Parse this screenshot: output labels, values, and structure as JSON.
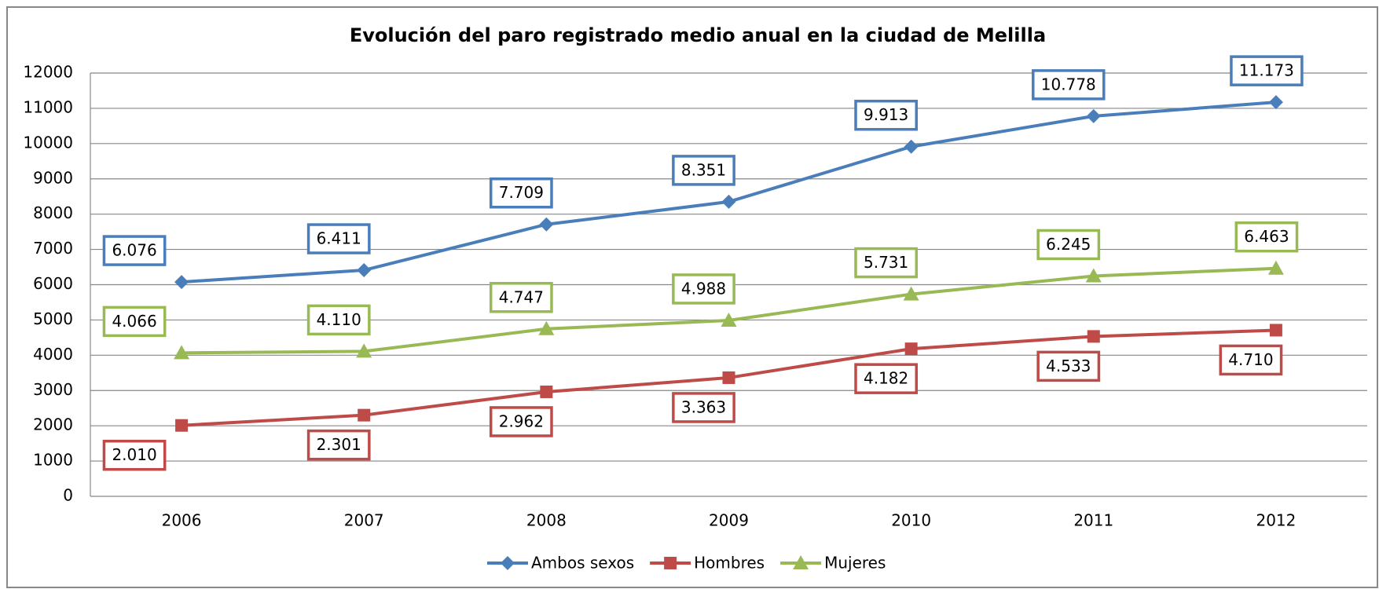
{
  "chart_data": {
    "type": "line",
    "title": "Evolución del paro registrado medio anual en la ciudad de Melilla",
    "categories": [
      "2006",
      "2007",
      "2008",
      "2009",
      "2010",
      "2011",
      "2012"
    ],
    "ylim": [
      0,
      12000
    ],
    "yticks": [
      0,
      1000,
      2000,
      3000,
      4000,
      5000,
      6000,
      7000,
      8000,
      9000,
      10000,
      11000,
      12000
    ],
    "grid": true,
    "legend": "bottom",
    "series": [
      {
        "name": "Ambos sexos",
        "color": "#4a7ebb",
        "marker": "diamond",
        "values": [
          6076,
          6411,
          7709,
          8351,
          9913,
          10778,
          11173
        ],
        "value_labels": [
          "6.076",
          "6.411",
          "7.709",
          "8.351",
          "9.913",
          "10.778",
          "11.173"
        ]
      },
      {
        "name": "Hombres",
        "color": "#be4b48",
        "marker": "square",
        "values": [
          2010,
          2301,
          2962,
          3363,
          4182,
          4533,
          4710
        ],
        "value_labels": [
          "2.010",
          "2.301",
          "2.962",
          "3.363",
          "4.182",
          "4.533",
          "4.710"
        ]
      },
      {
        "name": "Mujeres",
        "color": "#98b954",
        "marker": "triangle",
        "values": [
          4066,
          4110,
          4747,
          4988,
          5731,
          6245,
          6463
        ],
        "value_labels": [
          "4.066",
          "4.110",
          "4.747",
          "4.988",
          "5.731",
          "6.245",
          "6.463"
        ]
      }
    ]
  }
}
